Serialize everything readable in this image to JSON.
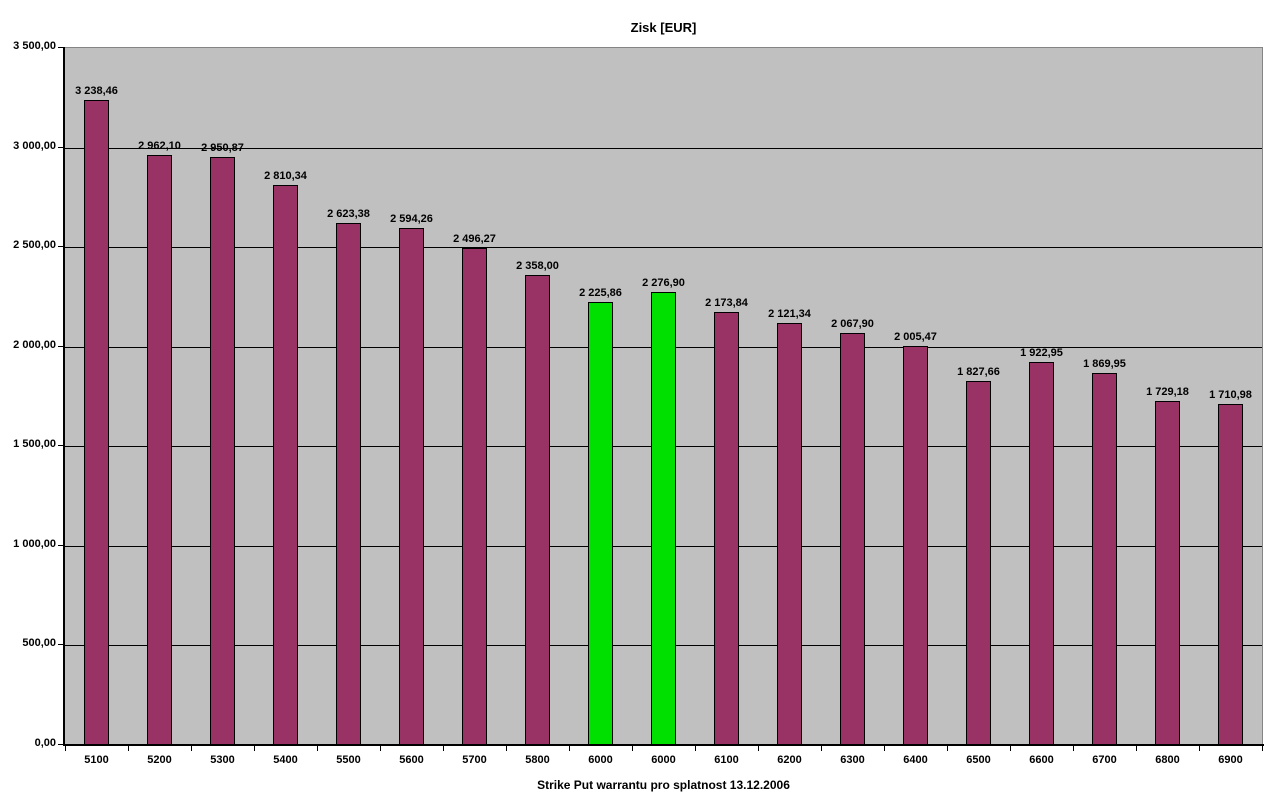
{
  "page": {
    "background": "#FFFFFF"
  },
  "chart_data": {
    "type": "bar",
    "title": "Zisk [EUR]",
    "xlabel": "Strike Put warrantu pro splatnost 13.12.2006",
    "ylabel": "",
    "categories": [
      "5100",
      "5200",
      "5300",
      "5400",
      "5500",
      "5600",
      "5700",
      "5800",
      "6000",
      "6000",
      "6100",
      "6200",
      "6300",
      "6400",
      "6500",
      "6600",
      "6700",
      "6800",
      "6900"
    ],
    "values": [
      3238.46,
      2962.1,
      2950.87,
      2810.34,
      2623.38,
      2594.26,
      2496.27,
      2358.0,
      2225.86,
      2276.9,
      2173.84,
      2121.34,
      2067.9,
      2005.47,
      1827.66,
      1922.95,
      1869.95,
      1729.18,
      1710.98
    ],
    "value_labels": [
      "3 238,46",
      "2 962,10",
      "2 950,87",
      "2 810,34",
      "2 623,38",
      "2 594,26",
      "2 496,27",
      "2 358,00",
      "2 225,86",
      "2 276,90",
      "2 173,84",
      "2 121,34",
      "2 067,90",
      "2 005,47",
      "1 827,66",
      "1 922,95",
      "1 869,95",
      "1 729,18",
      "1 710,98"
    ],
    "highlight_indices": [
      8,
      9
    ],
    "colors": {
      "bar": "#993366",
      "highlight": "#00E000",
      "plot_background": "#C0C0C0",
      "gridline": "#000000",
      "plot_border": "#848484",
      "text": "#000000"
    },
    "ylim": [
      0,
      3500
    ],
    "ytick_step": 500,
    "ytick_labels": [
      "0,00",
      "500,00",
      "1 000,00",
      "1 500,00",
      "2 000,00",
      "2 500,00",
      "3 000,00",
      "3 500,00"
    ],
    "grid": true,
    "legend": "none"
  }
}
